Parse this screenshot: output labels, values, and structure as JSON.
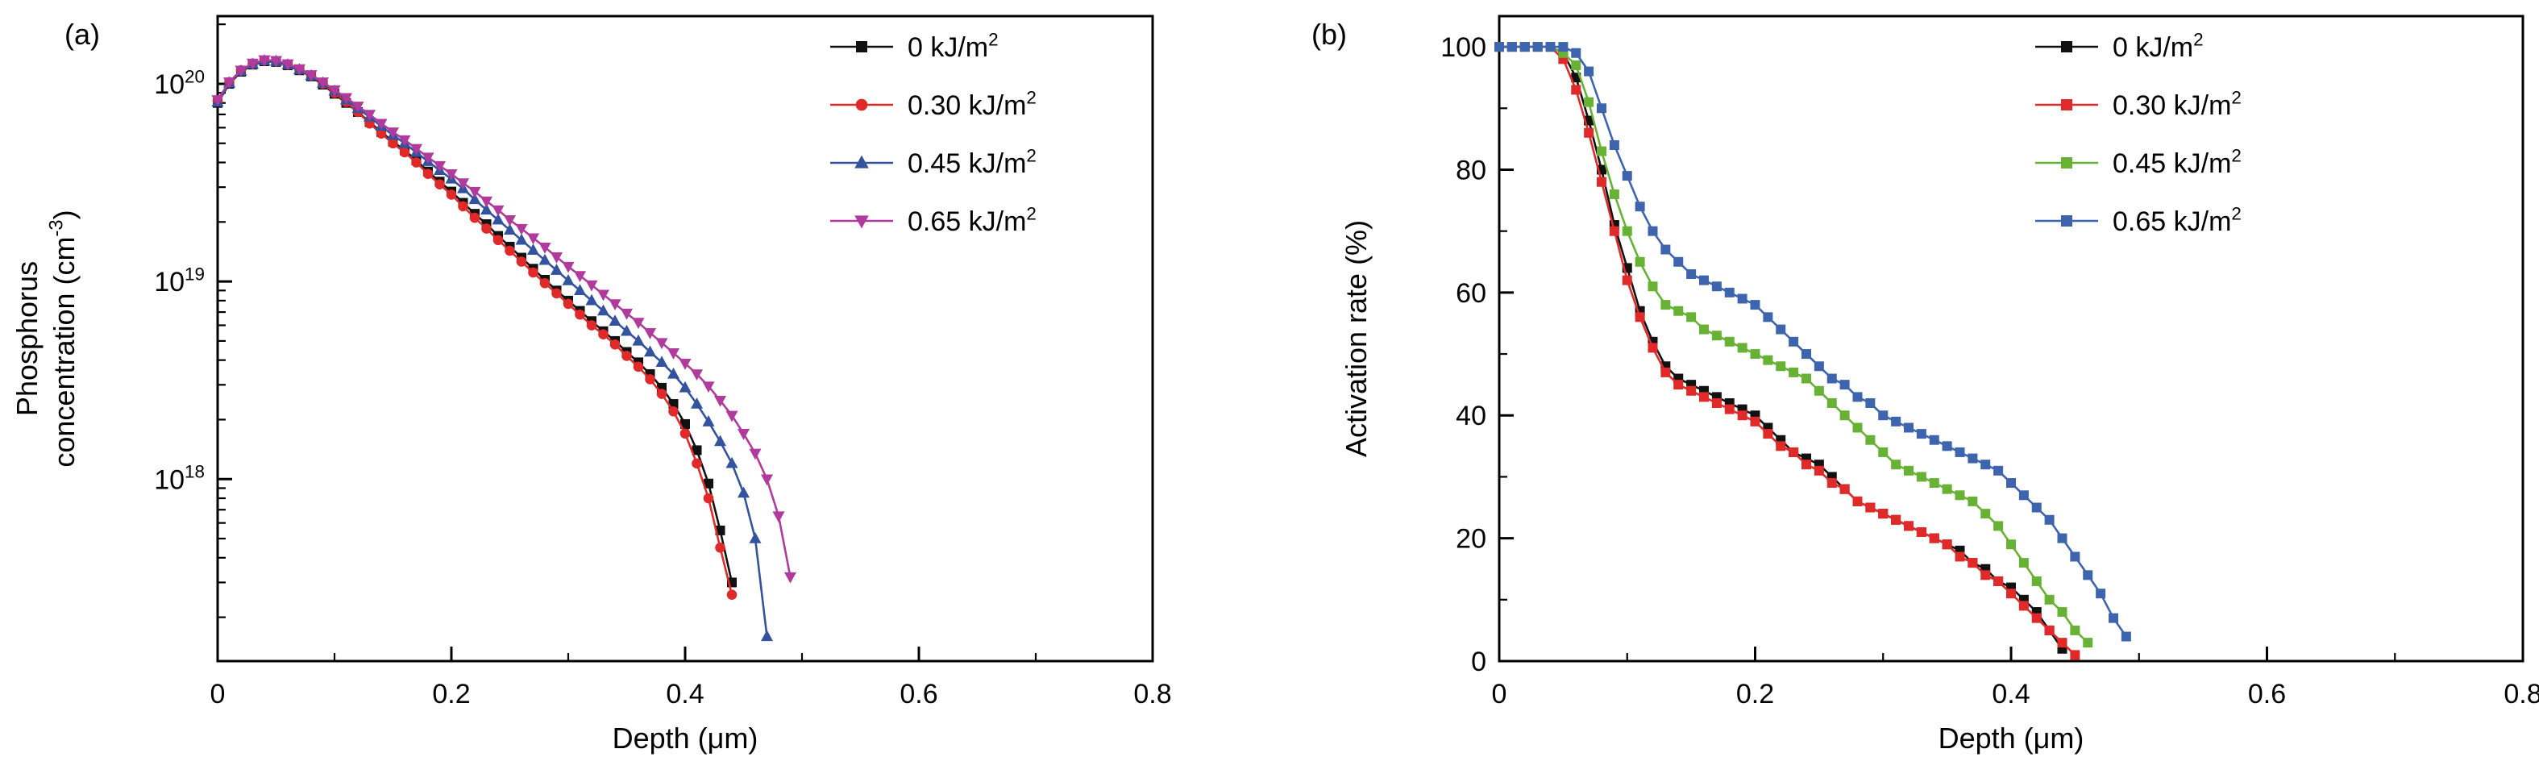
{
  "figure": {
    "background": "#ffffff",
    "panel_labels": [
      "(a)",
      "(b)"
    ]
  },
  "chart_data": [
    {
      "id": "a",
      "type": "line",
      "panel_label": "(a)",
      "xlabel": "Depth (μm)",
      "ylabel_lines": [
        "Phosphorus",
        "concentration (cm^{-3})"
      ],
      "xlim": [
        0,
        0.8
      ],
      "xticks": {
        "values": [
          0,
          0.2,
          0.4,
          0.6,
          0.8
        ],
        "labels": [
          "0",
          "0.2",
          "0.4",
          "0.6",
          "0.8"
        ],
        "minor_step": 0.1
      },
      "yscale": "log",
      "ylim": [
        1.2e+17,
        2.2e+20
      ],
      "yticks": {
        "values": [
          1e+18,
          1e+19,
          1e+20
        ],
        "labels": [
          "10^{18}",
          "10^{19}",
          "10^{20}"
        ]
      },
      "legend_position": "top-right",
      "grid": false,
      "series": [
        {
          "name": "0 kJ/m^{2}",
          "color": "#111111",
          "marker": "square",
          "x_start": 0,
          "x_step": 0.01,
          "y": [
            8e+19,
            1e+20,
            1.15e+20,
            1.25e+20,
            1.3e+20,
            1.29e+20,
            1.24e+20,
            1.17e+20,
            1.09e+20,
            9.9e+19,
            8.9e+19,
            8e+19,
            7.2e+19,
            6.4e+19,
            5.7e+19,
            5.1e+19,
            4.6e+19,
            4.1e+19,
            3.6e+19,
            3.2e+19,
            2.85e+19,
            2.5e+19,
            2.2e+19,
            1.95e+19,
            1.7e+19,
            1.5e+19,
            1.32e+19,
            1.16e+19,
            1.02e+19,
            9e+18,
            8e+18,
            7.1e+18,
            6.3e+18,
            5.6e+18,
            5e+18,
            4.4e+18,
            3.9e+18,
            3.4e+18,
            2.9e+18,
            2.4e+18,
            1.9e+18,
            1.4e+18,
            9.5e+17,
            5.5e+17,
            3e+17
          ]
        },
        {
          "name": "0.30 kJ/m^{2}",
          "color": "#e02a2a",
          "marker": "circle",
          "x_start": 0,
          "x_step": 0.01,
          "y": [
            8.2e+19,
            1.02e+20,
            1.17e+20,
            1.26e+20,
            1.31e+20,
            1.3e+20,
            1.25e+20,
            1.18e+20,
            1.1e+20,
            1e+20,
            9e+19,
            8.1e+19,
            7.2e+19,
            6.3e+19,
            5.6e+19,
            5e+19,
            4.5e+19,
            4e+19,
            3.5e+19,
            3.1e+19,
            2.75e+19,
            2.4e+19,
            2.1e+19,
            1.85e+19,
            1.62e+19,
            1.43e+19,
            1.26e+19,
            1.11e+19,
            9.8e+18,
            8.7e+18,
            7.7e+18,
            6.8e+18,
            6e+18,
            5.4e+18,
            4.8e+18,
            4.2e+18,
            3.7e+18,
            3.2e+18,
            2.7e+18,
            2.2e+18,
            1.7e+18,
            1.2e+18,
            8e+17,
            4.5e+17,
            2.6e+17
          ]
        },
        {
          "name": "0.45 kJ/m^{2}",
          "color": "#33539e",
          "marker": "triangle-up",
          "x_start": 0,
          "x_step": 0.01,
          "y": [
            8.1e+19,
            1.01e+20,
            1.16e+20,
            1.26e+20,
            1.31e+20,
            1.3e+20,
            1.25e+20,
            1.18e+20,
            1.1e+20,
            1.01e+20,
            9.2e+19,
            8.3e+19,
            7.5e+19,
            6.8e+19,
            6.1e+19,
            5.5e+19,
            5e+19,
            4.5e+19,
            4.05e+19,
            3.65e+19,
            3.3e+19,
            2.95e+19,
            2.6e+19,
            2.3e+19,
            2.05e+19,
            1.82e+19,
            1.62e+19,
            1.44e+19,
            1.28e+19,
            1.14e+19,
            1.01e+19,
            9e+18,
            8e+18,
            7.1e+18,
            6.3e+18,
            5.6e+18,
            5e+18,
            4.4e+18,
            3.9e+18,
            3.4e+18,
            2.9e+18,
            2.4e+18,
            1.95e+18,
            1.55e+18,
            1.2e+18,
            8.5e+17,
            5e+17,
            1.6e+17
          ]
        },
        {
          "name": "0.65 kJ/m^{2}",
          "color": "#b13a9d",
          "marker": "triangle-down",
          "x_start": 0,
          "x_step": 0.01,
          "y": [
            8.3e+19,
            1.02e+20,
            1.17e+20,
            1.27e+20,
            1.32e+20,
            1.31e+20,
            1.26e+20,
            1.19e+20,
            1.11e+20,
            1.02e+20,
            9.3e+19,
            8.5e+19,
            7.7e+19,
            7e+19,
            6.3e+19,
            5.7e+19,
            5.2e+19,
            4.7e+19,
            4.25e+19,
            3.85e+19,
            3.5e+19,
            3.15e+19,
            2.85e+19,
            2.55e+19,
            2.3e+19,
            2.05e+19,
            1.85e+19,
            1.66e+19,
            1.49e+19,
            1.33e+19,
            1.19e+19,
            1.07e+19,
            9.6e+18,
            8.6e+18,
            7.7e+18,
            6.9e+18,
            6.2e+18,
            5.5e+18,
            4.9e+18,
            4.35e+18,
            3.85e+18,
            3.4e+18,
            2.95e+18,
            2.5e+18,
            2.1e+18,
            1.7e+18,
            1.35e+18,
            1e+18,
            6.5e+17,
            3.2e+17
          ]
        }
      ]
    },
    {
      "id": "b",
      "type": "line",
      "panel_label": "(b)",
      "xlabel": "Depth (μm)",
      "ylabel_lines": [
        "Activation rate (%)"
      ],
      "xlim": [
        0,
        0.8
      ],
      "xticks": {
        "values": [
          0,
          0.2,
          0.4,
          0.6,
          0.8
        ],
        "labels": [
          "0",
          "0.2",
          "0.4",
          "0.6",
          "0.8"
        ],
        "minor_step": 0.1
      },
      "yscale": "linear",
      "ylim": [
        0,
        105
      ],
      "yticks": {
        "values": [
          0,
          20,
          40,
          60,
          80,
          100
        ],
        "labels": [
          "0",
          "20",
          "40",
          "60",
          "80",
          "100"
        ],
        "minor_step": 10
      },
      "legend_position": "top-right",
      "grid": false,
      "series": [
        {
          "name": "0 kJ/m^{2}",
          "color": "#111111",
          "marker": "square",
          "x_start": 0,
          "x_step": 0.01,
          "y": [
            100,
            100,
            100,
            100,
            100,
            99,
            95,
            88,
            80,
            71,
            64,
            57,
            52,
            48,
            46,
            45,
            44,
            43,
            42,
            41,
            40,
            38,
            36,
            34,
            33,
            32,
            30,
            28,
            26,
            25,
            24,
            23,
            22,
            21,
            20,
            19,
            18,
            16,
            15,
            13,
            12,
            10,
            8,
            5,
            2
          ]
        },
        {
          "name": "0.30 kJ/m^{2}",
          "color": "#e02a2a",
          "marker": "square",
          "x_start": 0,
          "x_step": 0.01,
          "y": [
            100,
            100,
            100,
            100,
            100,
            98,
            93,
            86,
            78,
            70,
            62,
            56,
            51,
            47,
            45,
            44,
            43,
            42,
            41,
            40,
            39,
            37,
            35,
            34,
            32,
            31,
            29,
            28,
            26,
            25,
            24,
            23,
            22,
            21,
            20,
            19,
            17,
            16,
            14,
            13,
            11,
            9,
            7,
            5,
            3,
            1
          ]
        },
        {
          "name": "0.45 kJ/m^{2}",
          "color": "#67b234",
          "marker": "square",
          "x_start": 0,
          "x_step": 0.01,
          "y": [
            100,
            100,
            100,
            100,
            100,
            99,
            97,
            91,
            83,
            76,
            70,
            65,
            61,
            58,
            57,
            56,
            54,
            53,
            52,
            51,
            50,
            49,
            48,
            47,
            46,
            44,
            42,
            40,
            38,
            36,
            34,
            32,
            31,
            30,
            29,
            28,
            27,
            26,
            24,
            22,
            19,
            16,
            13,
            10,
            8,
            5,
            3
          ]
        },
        {
          "name": "0.65 kJ/m^{2}",
          "color": "#3e64ae",
          "marker": "square",
          "x_start": 0,
          "x_step": 0.01,
          "y": [
            100,
            100,
            100,
            100,
            100,
            100,
            99,
            96,
            90,
            84,
            79,
            74,
            70,
            67,
            65,
            63,
            62,
            61,
            60,
            59,
            58,
            56,
            54,
            52,
            50,
            48,
            46,
            45,
            43,
            42,
            40,
            39,
            38,
            37,
            36,
            35,
            34,
            33,
            32,
            31,
            29,
            27,
            25,
            23,
            20,
            17,
            14,
            11,
            7,
            4
          ]
        }
      ]
    }
  ]
}
